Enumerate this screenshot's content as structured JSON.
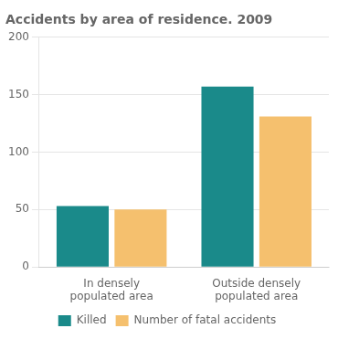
{
  "chart_data": {
    "type": "bar",
    "title": "Accidents by area of residence. 2009",
    "categories": [
      "In densely\npopulated area",
      "Outside densely\npopulated area"
    ],
    "series": [
      {
        "name": "Killed",
        "values": [
          53,
          157
        ],
        "color": "#1a8a8a"
      },
      {
        "name": "Number of fatal accidents",
        "values": [
          50,
          131
        ],
        "color": "#f5c06e"
      }
    ],
    "ylim": [
      0,
      200
    ],
    "yticks": [
      0,
      50,
      100,
      150,
      200
    ],
    "grid": true,
    "legend": "bottom"
  }
}
